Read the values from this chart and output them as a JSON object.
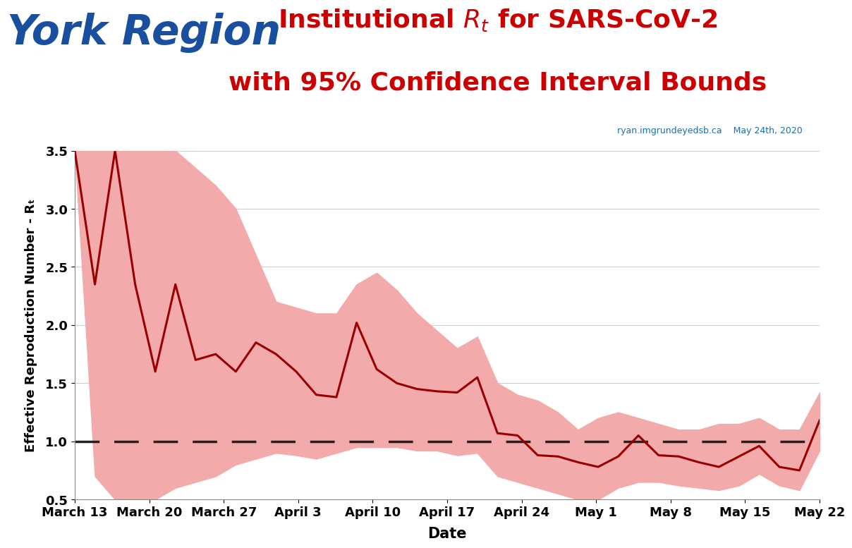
{
  "title_left": "York Region",
  "title_right_line1": "Institutional $R_t$ for SARS-CoV-2",
  "title_right_line2": "with 95% Confidence Interval Bounds",
  "subtitle_right": "ryan.imgrundeyedsb.ca    May 24th, 2020",
  "xlabel": "Date",
  "ylabel": "Effective Reproduction Number - Rₜ",
  "ylim": [
    0.5,
    3.5
  ],
  "dashed_line_y": 1.0,
  "x_tick_labels": [
    "March 13",
    "March 20",
    "March 27",
    "April 3",
    "April 10",
    "April 17",
    "April 24",
    "May 1",
    "May 8",
    "May 15",
    "May 22"
  ],
  "rt_values": [
    3.5,
    2.35,
    3.5,
    2.35,
    1.6,
    2.35,
    1.7,
    1.75,
    1.6,
    1.85,
    1.75,
    1.6,
    1.4,
    1.38,
    2.02,
    1.62,
    1.5,
    1.45,
    1.43,
    1.42,
    1.55,
    1.07,
    1.05,
    0.88,
    0.87,
    0.82,
    0.78,
    0.87,
    1.05,
    0.88,
    0.87,
    0.82,
    0.78,
    0.87,
    0.96,
    0.78,
    0.75,
    1.18
  ],
  "ci_upper": [
    3.5,
    3.5,
    3.5,
    3.5,
    3.5,
    3.5,
    3.35,
    3.2,
    3.0,
    2.6,
    2.2,
    2.15,
    2.1,
    2.1,
    2.35,
    2.45,
    2.3,
    2.1,
    1.95,
    1.8,
    1.9,
    1.5,
    1.4,
    1.35,
    1.25,
    1.1,
    1.2,
    1.25,
    1.2,
    1.15,
    1.1,
    1.1,
    1.15,
    1.15,
    1.2,
    1.1,
    1.1,
    1.42
  ],
  "ci_lower": [
    3.5,
    0.7,
    0.5,
    0.5,
    0.5,
    0.6,
    0.65,
    0.7,
    0.8,
    0.85,
    0.9,
    0.88,
    0.85,
    0.9,
    0.95,
    0.95,
    0.95,
    0.92,
    0.92,
    0.88,
    0.9,
    0.7,
    0.65,
    0.6,
    0.55,
    0.5,
    0.5,
    0.6,
    0.65,
    0.65,
    0.62,
    0.6,
    0.58,
    0.62,
    0.72,
    0.62,
    0.58,
    0.92
  ],
  "line_color": "#990000",
  "fill_color": "#f2aaaa",
  "dashed_color": "#222222",
  "title_left_color": "#1a4fa0",
  "title_right_color": "#cc0000",
  "subtitle_color": "#1a6faa",
  "background_color": "#ffffff",
  "grid_color": "#cccccc"
}
